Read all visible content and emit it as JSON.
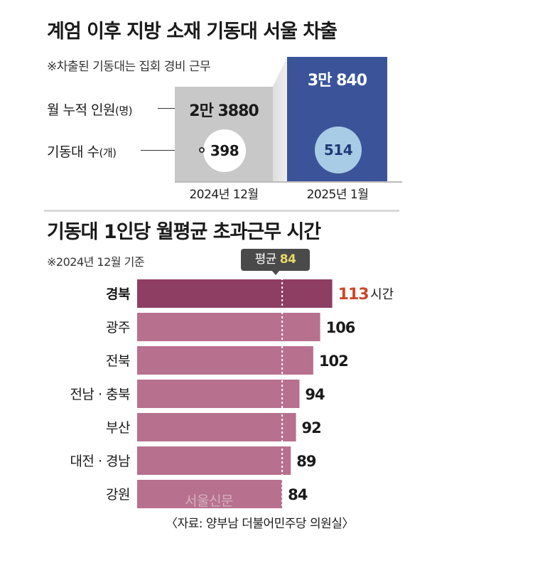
{
  "top_chart": {
    "title": "계엄 이후 지방 소재 기동대 서울 차출",
    "note": "※차출된 기동대는 집회 경비 근무",
    "row_labels": {
      "monthly_label": "월 누적 인원",
      "monthly_unit": "(명)",
      "units_label": "기동대 수",
      "units_unit": "(개)"
    },
    "colors": {
      "bar_2024": "#c8c8c8",
      "bar_2025": "#3b5499",
      "circle_2025": "#a9cce6"
    }
  },
  "bottom_chart": {
    "title": "기동대 1인당 월평균 초과근무 시간",
    "note": "※2024년 12월 기준",
    "average_label": "평균",
    "average_value": "84",
    "unit_label": "시간",
    "colors": {
      "bar": "#b8708f",
      "bar_highlight": "#8e3d63",
      "highlight_value": "#c9492b"
    }
  },
  "chart_data": [
    {
      "type": "bar",
      "title": "계엄 이후 지방 소재 기동대 서울 차출",
      "categories": [
        "2024년 12월",
        "2025년 1월"
      ],
      "series": [
        {
          "name": "월 누적 인원(명)",
          "values": [
            23880,
            30840
          ],
          "labels": [
            "2만 3880",
            "3만 840"
          ]
        },
        {
          "name": "기동대 수(개)",
          "values": [
            398,
            514
          ],
          "labels": [
            "398",
            "514"
          ]
        }
      ]
    },
    {
      "type": "bar",
      "orientation": "horizontal",
      "title": "기동대 1인당 월평균 초과근무 시간",
      "categories": [
        "경북",
        "광주",
        "전북",
        "전남 · 충북",
        "부산",
        "대전 · 경남",
        "강원"
      ],
      "values": [
        113,
        106,
        102,
        94,
        92,
        89,
        84
      ],
      "average": 84,
      "highlight_index": 0,
      "x_range": [
        0,
        120
      ]
    }
  ],
  "watermark": "서울신문",
  "source": "〈자료: 양부남 더불어민주당 의원실〉"
}
